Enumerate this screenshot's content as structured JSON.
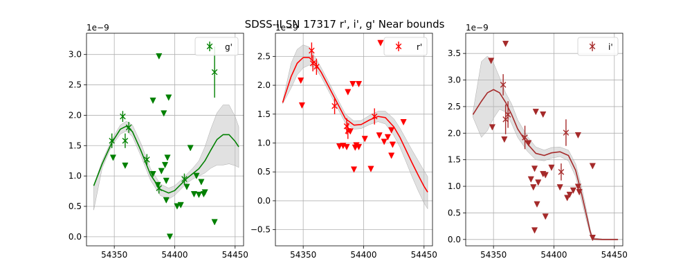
{
  "chart_data": {
    "title": "SDSS-II SN 17317  r', i', g' Near bounds",
    "panels": [
      {
        "type": "scatter",
        "band": "g'",
        "color": "#008000",
        "offset_label": "1e−9",
        "xlim": [
          54327,
          54457
        ],
        "ylim": [
          -0.15,
          3.35
        ],
        "xticks": [
          54350,
          54400,
          54450
        ],
        "yticks": [
          0.0,
          0.5,
          1.0,
          1.5,
          2.0,
          2.5,
          3.0
        ],
        "ytick_labels": [
          "0.0",
          "0.5",
          "1.0",
          "1.5",
          "2.0",
          "2.5",
          "3.0"
        ],
        "legend": "g'",
        "detections": [
          {
            "x": 54348,
            "y": 1.58,
            "err": 0.12
          },
          {
            "x": 54357,
            "y": 1.98,
            "err": 0.09
          },
          {
            "x": 54359,
            "y": 1.58,
            "err": 0.12
          },
          {
            "x": 54362,
            "y": 1.8,
            "err": 0.09
          },
          {
            "x": 54377,
            "y": 1.27,
            "err": 0.09
          },
          {
            "x": 54387,
            "y": 0.8,
            "err": 0.09
          },
          {
            "x": 54408,
            "y": 0.95,
            "err": 0.09
          },
          {
            "x": 54433,
            "y": 2.71,
            "err": 0.42
          }
        ],
        "upper_limits": [
          {
            "x": 54349,
            "y": 1.3
          },
          {
            "x": 54359,
            "y": 1.17
          },
          {
            "x": 54382,
            "y": 2.24
          },
          {
            "x": 54382,
            "y": 1.03
          },
          {
            "x": 54386,
            "y": 0.85
          },
          {
            "x": 54387,
            "y": 2.97
          },
          {
            "x": 54389,
            "y": 1.08
          },
          {
            "x": 54391,
            "y": 2.03
          },
          {
            "x": 54392,
            "y": 1.18
          },
          {
            "x": 54393,
            "y": 0.92
          },
          {
            "x": 54393,
            "y": 0.6
          },
          {
            "x": 54394,
            "y": 1.3
          },
          {
            "x": 54395,
            "y": 2.29
          },
          {
            "x": 54396,
            "y": 0.0
          },
          {
            "x": 54402,
            "y": 0.5
          },
          {
            "x": 54405,
            "y": 0.52
          },
          {
            "x": 54410,
            "y": 0.82
          },
          {
            "x": 54413,
            "y": 1.46
          },
          {
            "x": 54416,
            "y": 0.7
          },
          {
            "x": 54418,
            "y": 1.0
          },
          {
            "x": 54420,
            "y": 0.69
          },
          {
            "x": 54422,
            "y": 0.9
          },
          {
            "x": 54424,
            "y": 0.7
          },
          {
            "x": 54425,
            "y": 0.73
          },
          {
            "x": 54433,
            "y": 0.24
          }
        ],
        "model_curve": {
          "x": [
            54333,
            54340,
            54348,
            54355,
            54360,
            54365,
            54372,
            54380,
            54388,
            54395,
            54400,
            54405,
            54410,
            54415,
            54420,
            54425,
            54430,
            54435,
            54440,
            54445,
            54450,
            54453
          ],
          "y": [
            0.84,
            1.2,
            1.55,
            1.77,
            1.82,
            1.73,
            1.42,
            1.02,
            0.78,
            0.72,
            0.76,
            0.86,
            0.96,
            1.04,
            1.12,
            1.25,
            1.43,
            1.6,
            1.68,
            1.68,
            1.57,
            1.48
          ]
        },
        "band_upper": [
          0.84,
          1.25,
          1.6,
          1.84,
          1.9,
          1.84,
          1.54,
          1.12,
          0.87,
          0.8,
          0.84,
          0.93,
          1.03,
          1.13,
          1.25,
          1.48,
          1.78,
          2.04,
          2.17,
          2.17,
          1.98,
          1.81
        ],
        "band_lower": [
          0.44,
          1.13,
          1.5,
          1.69,
          1.74,
          1.65,
          1.33,
          0.93,
          0.68,
          0.62,
          0.68,
          0.78,
          0.88,
          0.95,
          1.0,
          1.05,
          1.13,
          1.18,
          1.18,
          1.2,
          1.17,
          1.14
        ]
      },
      {
        "type": "scatter",
        "band": "r'",
        "color": "#ff0000",
        "offset_label": "1e−9",
        "xlim": [
          54327,
          54457
        ],
        "ylim": [
          -0.78,
          2.9
        ],
        "xticks": [
          54350,
          54400,
          54450
        ],
        "yticks": [
          -0.5,
          0.0,
          0.5,
          1.0,
          1.5,
          2.0,
          2.5
        ],
        "ytick_labels": [
          "−0.5",
          "0.0",
          "0.5",
          "1.0",
          "1.5",
          "2.0",
          "2.5"
        ],
        "legend": "r'",
        "detections": [
          {
            "x": 54357,
            "y": 2.6,
            "err": 0.14
          },
          {
            "x": 54358,
            "y": 2.38,
            "err": 0.14
          },
          {
            "x": 54361,
            "y": 2.32,
            "err": 0.14
          },
          {
            "x": 54376,
            "y": 1.64,
            "err": 0.14
          },
          {
            "x": 54386,
            "y": 1.29,
            "err": 0.14
          },
          {
            "x": 54387,
            "y": 1.21,
            "err": 0.14
          },
          {
            "x": 54409,
            "y": 1.46,
            "err": 0.14
          }
        ],
        "upper_limits": [
          {
            "x": 54348,
            "y": 2.08
          },
          {
            "x": 54349,
            "y": 1.65
          },
          {
            "x": 54380,
            "y": 0.94
          },
          {
            "x": 54383,
            "y": 0.95
          },
          {
            "x": 54386,
            "y": 0.93
          },
          {
            "x": 54387,
            "y": 1.88
          },
          {
            "x": 54389,
            "y": 1.2
          },
          {
            "x": 54391,
            "y": 2.02
          },
          {
            "x": 54392,
            "y": 0.54
          },
          {
            "x": 54393,
            "y": 0.92
          },
          {
            "x": 54394,
            "y": 0.96
          },
          {
            "x": 54396,
            "y": 2.02
          },
          {
            "x": 54396,
            "y": 0.93
          },
          {
            "x": 54401,
            "y": 1.07
          },
          {
            "x": 54406,
            "y": 0.55
          },
          {
            "x": 54413,
            "y": 1.13
          },
          {
            "x": 54414,
            "y": 2.73
          },
          {
            "x": 54417,
            "y": 1.02
          },
          {
            "x": 54420,
            "y": 1.1
          },
          {
            "x": 54423,
            "y": 1.22
          },
          {
            "x": 54423,
            "y": 0.78
          },
          {
            "x": 54424,
            "y": 0.97
          },
          {
            "x": 54433,
            "y": 1.36
          }
        ],
        "model_curve": {
          "x": [
            54333,
            54340,
            54345,
            54350,
            54355,
            54360,
            54365,
            54370,
            54378,
            54385,
            54392,
            54398,
            54405,
            54412,
            54418,
            54425,
            54430,
            54435,
            54440,
            54445,
            54450,
            54453
          ],
          "y": [
            1.7,
            2.15,
            2.38,
            2.48,
            2.48,
            2.38,
            2.22,
            2.02,
            1.7,
            1.42,
            1.31,
            1.32,
            1.4,
            1.46,
            1.44,
            1.28,
            1.1,
            0.88,
            0.66,
            0.45,
            0.25,
            0.15
          ]
        },
        "band_upper": [
          1.72,
          2.38,
          2.62,
          2.7,
          2.66,
          2.48,
          2.3,
          2.1,
          1.78,
          1.5,
          1.38,
          1.39,
          1.48,
          1.55,
          1.55,
          1.42,
          1.26,
          1.07,
          0.88,
          0.7,
          0.52,
          0.42
        ],
        "band_lower": [
          1.68,
          1.95,
          2.18,
          2.3,
          2.35,
          2.3,
          2.14,
          1.94,
          1.62,
          1.34,
          1.24,
          1.25,
          1.32,
          1.37,
          1.33,
          1.13,
          0.93,
          0.68,
          0.42,
          0.18,
          -0.04,
          -0.14
        ]
      },
      {
        "type": "scatter",
        "band": "i'",
        "color": "#a52a2a",
        "offset_label": "1e−9",
        "xlim": [
          54327,
          54457
        ],
        "ylim": [
          -0.12,
          3.88
        ],
        "xticks": [
          54350,
          54400,
          54450
        ],
        "yticks": [
          0.0,
          0.5,
          1.0,
          1.5,
          2.0,
          2.5,
          3.0,
          3.5
        ],
        "ytick_labels": [
          "0.0",
          "0.5",
          "1.0",
          "1.5",
          "2.0",
          "2.5",
          "3.0",
          "3.5"
        ],
        "legend": "i'",
        "detections": [
          {
            "x": 54358,
            "y": 2.91,
            "err": 0.2
          },
          {
            "x": 54360,
            "y": 2.26,
            "err": 0.28
          },
          {
            "x": 54362,
            "y": 2.35,
            "err": 0.25
          },
          {
            "x": 54376,
            "y": 1.92,
            "err": 0.22
          },
          {
            "x": 54406,
            "y": 1.27,
            "err": 0.16
          },
          {
            "x": 54410,
            "y": 2.01,
            "err": 0.25
          }
        ],
        "upper_limits": [
          {
            "x": 54348,
            "y": 3.36
          },
          {
            "x": 54349,
            "y": 2.11
          },
          {
            "x": 54359,
            "y": 1.88
          },
          {
            "x": 54360,
            "y": 3.68
          },
          {
            "x": 54379,
            "y": 1.81
          },
          {
            "x": 54381,
            "y": 1.13
          },
          {
            "x": 54383,
            "y": 0.98
          },
          {
            "x": 54384,
            "y": 1.33
          },
          {
            "x": 54384,
            "y": 0.17
          },
          {
            "x": 54385,
            "y": 2.4
          },
          {
            "x": 54386,
            "y": 0.66
          },
          {
            "x": 54387,
            "y": 1.07
          },
          {
            "x": 54391,
            "y": 2.35
          },
          {
            "x": 54391,
            "y": 1.23
          },
          {
            "x": 54393,
            "y": 1.21
          },
          {
            "x": 54393,
            "y": 0.43
          },
          {
            "x": 54398,
            "y": 1.35
          },
          {
            "x": 54405,
            "y": 0.98
          },
          {
            "x": 54411,
            "y": 0.78
          },
          {
            "x": 54413,
            "y": 0.84
          },
          {
            "x": 54416,
            "y": 0.92
          },
          {
            "x": 54420,
            "y": 0.99
          },
          {
            "x": 54420,
            "y": 1.96
          },
          {
            "x": 54421,
            "y": 0.89
          },
          {
            "x": 54432,
            "y": 1.38
          },
          {
            "x": 54432,
            "y": 0.03
          }
        ],
        "model_curve": {
          "x": [
            54333,
            54340,
            54345,
            54350,
            54355,
            54360,
            54365,
            54370,
            54378,
            54385,
            54392,
            54398,
            54405,
            54412,
            54418,
            54423,
            54427,
            54430,
            54432,
            54440,
            54448,
            54453
          ],
          "y": [
            2.35,
            2.6,
            2.76,
            2.82,
            2.76,
            2.58,
            2.35,
            2.08,
            1.8,
            1.62,
            1.58,
            1.63,
            1.65,
            1.58,
            1.3,
            0.85,
            0.45,
            0.15,
            0.01,
            0.0,
            0.0,
            0.0
          ]
        },
        "band_upper": [
          2.4,
          3.35,
          3.45,
          3.32,
          3.05,
          2.76,
          2.55,
          2.25,
          1.94,
          1.74,
          1.68,
          1.73,
          1.74,
          1.68,
          1.42,
          0.98,
          0.55,
          0.2,
          0.03,
          0.01,
          0.01,
          0.01
        ],
        "band_lower": [
          2.3,
          1.92,
          2.05,
          2.28,
          2.45,
          2.4,
          2.18,
          1.92,
          1.66,
          1.5,
          1.48,
          1.53,
          1.56,
          1.48,
          1.18,
          0.72,
          0.35,
          0.1,
          -0.01,
          -0.01,
          -0.01,
          -0.01
        ]
      }
    ]
  }
}
